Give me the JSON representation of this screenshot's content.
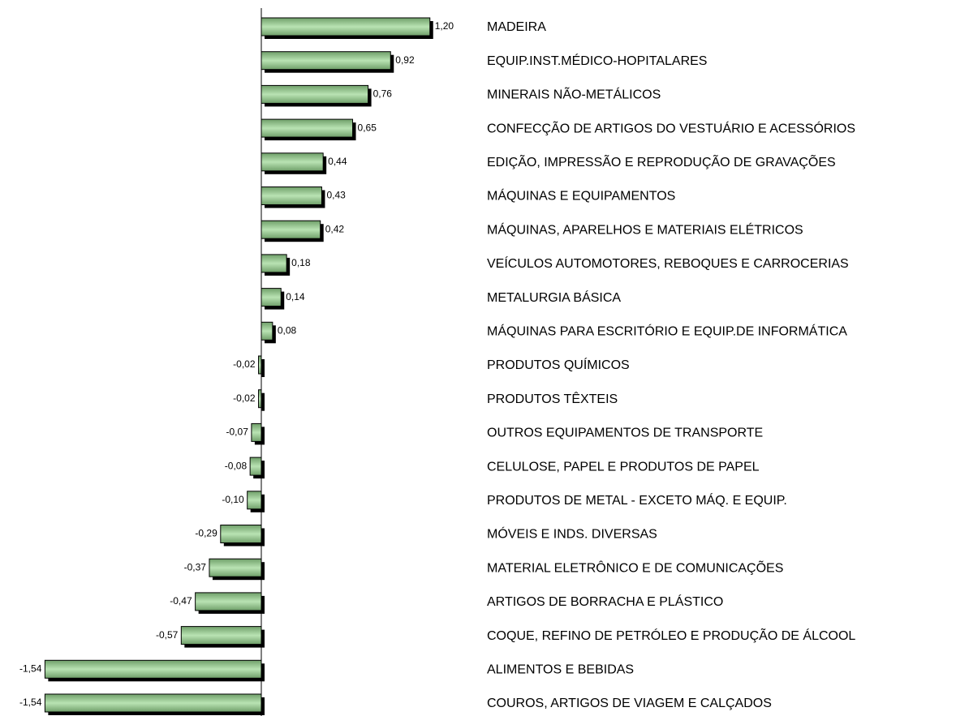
{
  "chart_data": {
    "type": "bar",
    "orientation": "horizontal",
    "color": "#b9e3b3",
    "categories": [
      "MADEIRA",
      "EQUIP.INST.MÉDICO-HOPITALARES",
      "MINERAIS NÃO-METÁLICOS",
      "CONFECÇÃO DE ARTIGOS DO VESTUÁRIO E ACESSÓRIOS",
      "EDIÇÃO, IMPRESSÃO E REPRODUÇÃO DE GRAVAÇÕES",
      "MÁQUINAS E EQUIPAMENTOS",
      "MÁQUINAS, APARELHOS E MATERIAIS ELÉTRICOS",
      "VEÍCULOS AUTOMOTORES, REBOQUES E CARROCERIAS",
      "METALURGIA BÁSICA",
      "MÁQUINAS PARA ESCRITÓRIO E EQUIP.DE INFORMÁTICA",
      "PRODUTOS QUÍMICOS",
      "PRODUTOS TÊXTEIS",
      "OUTROS EQUIPAMENTOS DE TRANSPORTE",
      "CELULOSE, PAPEL E PRODUTOS DE PAPEL",
      "PRODUTOS DE METAL - EXCETO MÁQ. E EQUIP.",
      "MÓVEIS E INDS. DIVERSAS",
      "MATERIAL ELETRÔNICO E DE COMUNICAÇÕES",
      "ARTIGOS DE BORRACHA E PLÁSTICO",
      "COQUE, REFINO DE PETRÓLEO E PRODUÇÃO DE ÁLCOOL",
      "ALIMENTOS E BEBIDAS",
      "COUROS, ARTIGOS DE VIAGEM E CALÇADOS"
    ],
    "values": [
      1.2,
      0.92,
      0.76,
      0.65,
      0.44,
      0.43,
      0.42,
      0.18,
      0.14,
      0.08,
      -0.02,
      -0.02,
      -0.07,
      -0.08,
      -0.1,
      -0.29,
      -0.37,
      -0.47,
      -0.57,
      -1.54,
      -1.54
    ],
    "value_labels": [
      "1,20",
      "0,92",
      "0,76",
      "0,65",
      "0,44",
      "0,43",
      "0,42",
      "0,18",
      "0,14",
      "0,08",
      "-0,02",
      "-0,02",
      "-0,07",
      "-0,08",
      "-0,10",
      "-0,29",
      "-0,37",
      "-0,47",
      "-0,57",
      "-1,54",
      "-1,54"
    ],
    "xlim": [
      -1.6,
      1.6
    ]
  }
}
